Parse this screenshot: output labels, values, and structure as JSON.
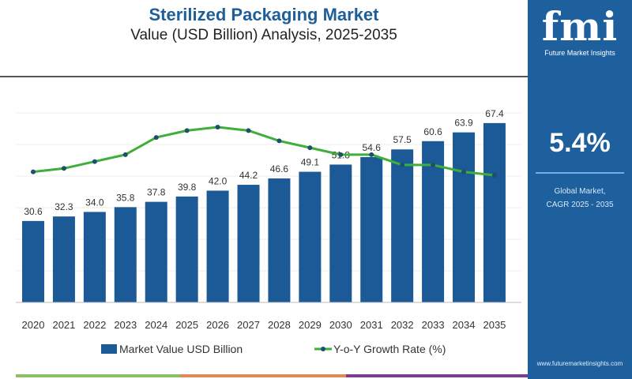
{
  "header": {
    "title": "Sterilized Packaging Market",
    "subtitle": "Value (USD Billion) Analysis, 2025-2035"
  },
  "panel": {
    "logo": "fmi",
    "logo_text": "Future Market Insights",
    "cagr": "5.4%",
    "cagr_label_1": "Global Market,",
    "cagr_label_2": "CAGR 2025 - 2035",
    "url": "www.futuremarketinsights.com",
    "color": "#1e5f9e"
  },
  "chart_data": {
    "type": "bar",
    "categories": [
      "2020",
      "2021",
      "2022",
      "2023",
      "2024",
      "2025",
      "2026",
      "2027",
      "2028",
      "2029",
      "2030",
      "2031",
      "2032",
      "2033",
      "2034",
      "2035"
    ],
    "series": [
      {
        "name": "Market Value USD Billion",
        "type": "bar",
        "color": "#1b5a96",
        "values": [
          30.6,
          32.3,
          34.0,
          35.8,
          37.8,
          39.8,
          42.0,
          44.2,
          46.6,
          49.1,
          51.8,
          54.6,
          57.5,
          60.6,
          63.9,
          67.4
        ]
      },
      {
        "name": "Y-o-Y Growth Rate (%)",
        "type": "line",
        "color": "#3fae3a",
        "values": [
          5.4,
          5.5,
          5.7,
          5.9,
          6.4,
          6.6,
          6.7,
          6.6,
          6.3,
          6.1,
          5.9,
          5.9,
          5.6,
          5.6,
          5.4,
          5.3
        ]
      }
    ],
    "xlabel": "",
    "ylabel": "",
    "grid": true,
    "legend": "bottom"
  },
  "legend": {
    "bar": "Market Value USD Billion",
    "line": "Y-o-Y Growth Rate (%)"
  }
}
